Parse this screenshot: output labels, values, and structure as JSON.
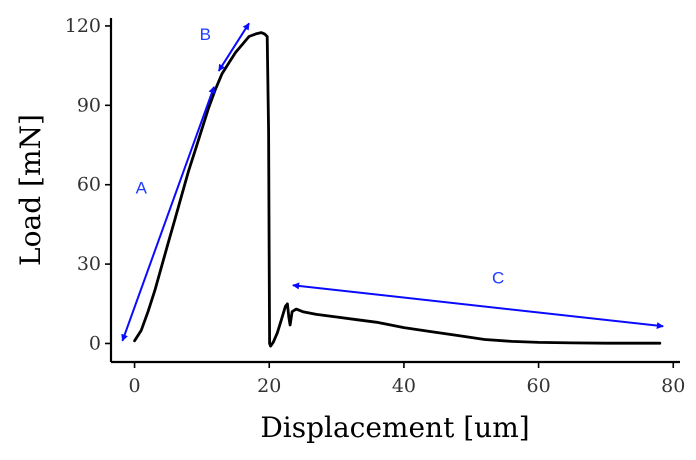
{
  "chart_data": {
    "type": "line",
    "xlabel": "Displacement [um]",
    "ylabel": "Load [mN]",
    "xlim": [
      -3.5,
      81
    ],
    "ylim": [
      -7,
      123
    ],
    "x_ticks": [
      0,
      20,
      40,
      60,
      80
    ],
    "y_ticks": [
      0,
      30,
      60,
      90,
      120
    ],
    "grid": false,
    "series": [
      {
        "color": "#000000",
        "x": [
          0,
          1,
          2,
          3,
          4,
          5,
          6,
          7,
          8,
          9,
          10,
          11,
          12,
          13,
          14,
          15,
          16,
          17,
          18,
          18.8,
          19.3,
          19.7,
          19.9,
          20.0,
          20.05,
          20.2,
          20.6,
          21.2,
          21.8,
          22.4,
          22.7,
          22.9,
          23.1,
          23.4,
          24,
          25,
          27,
          30,
          33,
          36,
          40,
          44,
          48,
          52,
          56,
          60,
          65,
          70,
          75,
          78
        ],
        "y": [
          1,
          5,
          12,
          20,
          29,
          38,
          47,
          56,
          65,
          73,
          81,
          89,
          96,
          102,
          106,
          110,
          113,
          116,
          117,
          117.5,
          117,
          116,
          80,
          30,
          0,
          -1,
          0.5,
          4,
          9,
          14,
          15,
          10,
          7,
          12,
          13,
          12,
          11,
          10,
          9,
          8,
          6,
          4.5,
          3,
          1.5,
          0.8,
          0.4,
          0.2,
          0.1,
          0.1,
          0.1
        ]
      }
    ],
    "annotations": [
      {
        "label": "A",
        "x": 1,
        "y": 59,
        "arrow": {
          "x1": -1.8,
          "y1": 1,
          "x2": 11.8,
          "y2": 97
        }
      },
      {
        "label": "B",
        "x": 10.5,
        "y": 117,
        "arrow": {
          "x1": 12.5,
          "y1": 103,
          "x2": 17,
          "y2": 121
        }
      },
      {
        "label": "C",
        "x": 54,
        "y": 25,
        "arrow": {
          "x1": 23.5,
          "y1": 22,
          "x2": 78.5,
          "y2": 6.5
        }
      }
    ]
  }
}
